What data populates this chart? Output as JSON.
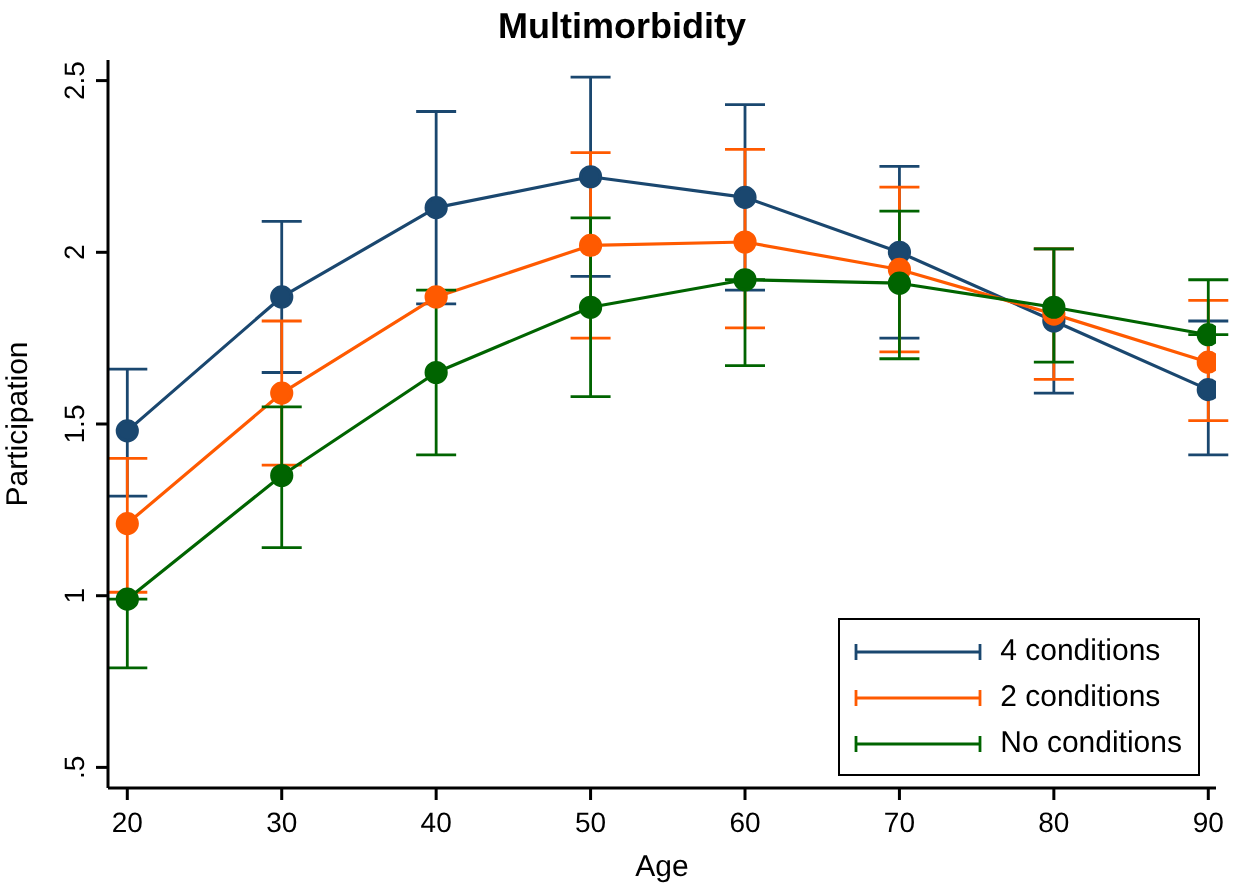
{
  "chart_data": {
    "type": "line",
    "title": "Multimorbidity",
    "xlabel": "Age",
    "ylabel": "Participation",
    "x": [
      20,
      30,
      40,
      50,
      60,
      70,
      80,
      90
    ],
    "xlim": [
      18.75,
      90.5
    ],
    "xticks": [
      20,
      30,
      40,
      50,
      60,
      70,
      80,
      90
    ],
    "ylim": [
      0.44,
      2.56
    ],
    "yticks": [
      {
        "value": 0.5,
        "label": ".5"
      },
      1,
      1.5,
      2,
      2.5
    ],
    "grid": false,
    "legend": "bottom right",
    "marker": "circle",
    "line_style": "solid",
    "series": [
      {
        "name": "4 conditions",
        "color": "#1a476f",
        "values": [
          1.48,
          1.87,
          2.13,
          2.22,
          2.16,
          2.0,
          1.8,
          1.6
        ],
        "errors": [
          [
            1.29,
            1.66
          ],
          [
            1.65,
            2.09
          ],
          [
            1.85,
            2.41
          ],
          [
            1.93,
            2.51
          ],
          [
            1.89,
            2.43
          ],
          [
            1.75,
            2.25
          ],
          [
            1.59,
            2.01
          ],
          [
            1.41,
            1.8
          ]
        ]
      },
      {
        "name": "2 conditions",
        "color": "#ff5a00",
        "values": [
          1.21,
          1.59,
          1.87,
          2.02,
          2.03,
          1.95,
          1.82,
          1.68
        ],
        "errors": [
          [
            1.01,
            1.4
          ],
          [
            1.38,
            1.8
          ],
          null,
          [
            1.75,
            2.29
          ],
          [
            1.78,
            2.3
          ],
          [
            1.71,
            2.19
          ],
          [
            1.63,
            2.01
          ],
          [
            1.51,
            1.86
          ]
        ]
      },
      {
        "name": "No conditions",
        "color": "#006400",
        "values": [
          0.99,
          1.35,
          1.65,
          1.84,
          1.92,
          1.91,
          1.84,
          1.76
        ],
        "errors": [
          [
            0.79,
            0.99
          ],
          [
            1.14,
            1.55
          ],
          [
            1.41,
            1.89
          ],
          [
            1.58,
            2.1
          ],
          [
            1.67,
            1.92
          ],
          [
            1.69,
            2.12
          ],
          [
            1.68,
            2.01
          ],
          [
            1.76,
            1.92
          ]
        ]
      }
    ]
  }
}
